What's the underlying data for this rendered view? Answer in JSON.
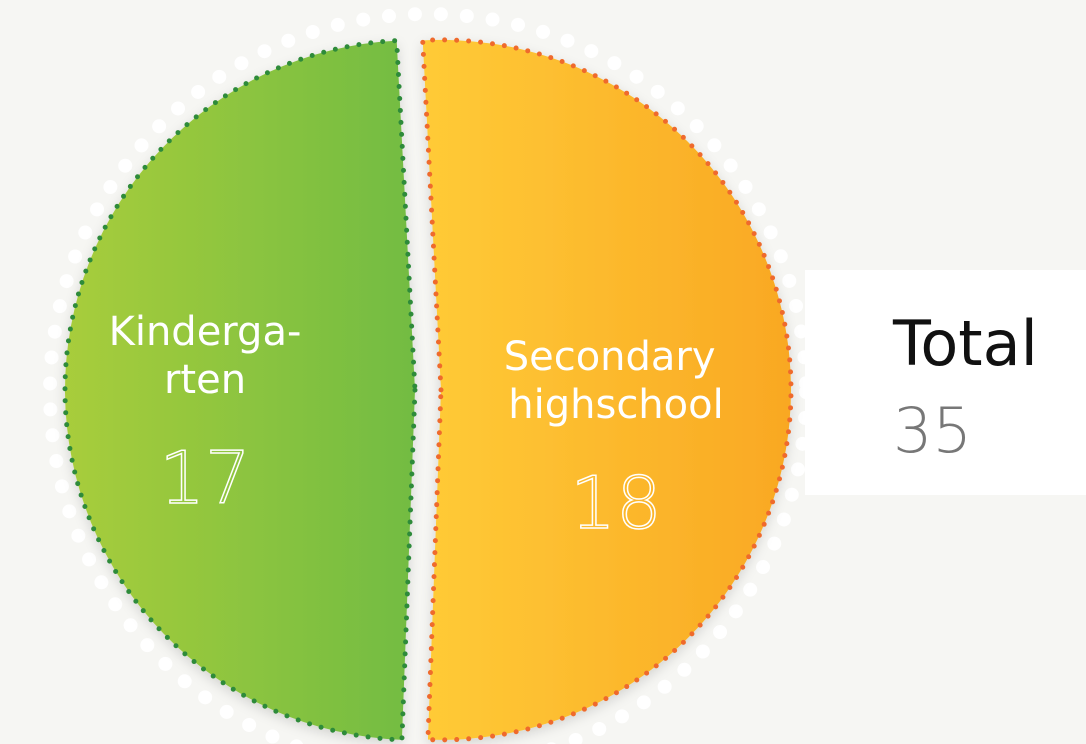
{
  "chart_data": {
    "type": "pie",
    "categories": [
      "Kinderga-rten",
      "Secondary highschool"
    ],
    "values": [
      17,
      18
    ],
    "colors": [
      [
        "#a8cd3b",
        "#72bc43"
      ],
      [
        "#ffcb37",
        "#f9a823"
      ]
    ],
    "outline_colors": [
      "#2e8b3a",
      "#ef6a2c"
    ],
    "total_label": "Total",
    "total": 35
  }
}
